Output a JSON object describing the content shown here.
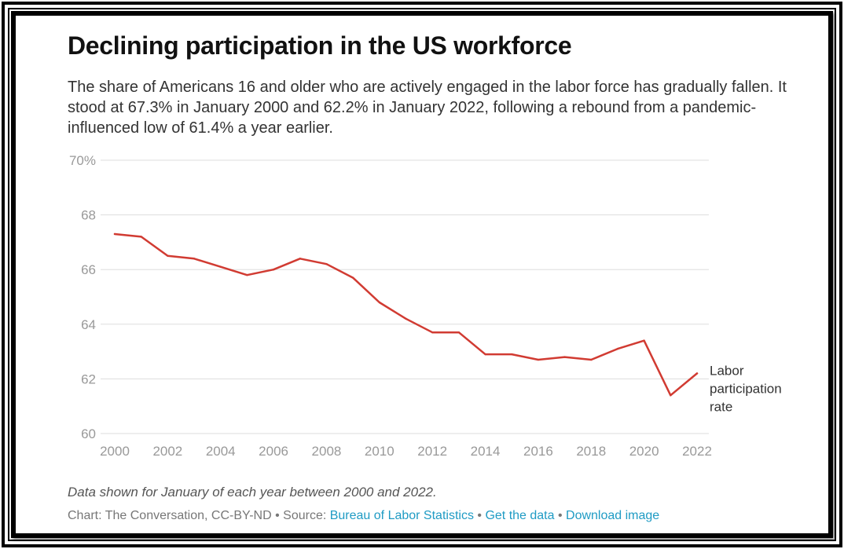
{
  "header": {
    "title": "Declining participation in the US workforce",
    "subtitle": "The share of Americans 16 and older who are actively engaged in the labor force has gradually fallen. It stood at 67.3% in January 2000 and 62.2% in January 2022, following a rebound from a pandemic-influenced low of 61.4% a year earlier."
  },
  "footer": {
    "note": "Data shown for January of each year between 2000 and 2022.",
    "credit_prefix": "Chart: The Conversation, CC-BY-ND • Source: ",
    "source_link": "Bureau of Labor Statistics",
    "separator": " • ",
    "get_data_link": "Get the data",
    "download_link": "Download image"
  },
  "colors": {
    "line": "#d13b32",
    "grid": "#dddddd",
    "tick_text": "#999999",
    "link": "#1f9bc4"
  },
  "chart_data": {
    "type": "line",
    "title": "Declining participation in the US workforce",
    "x": [
      2000,
      2001,
      2002,
      2003,
      2004,
      2005,
      2006,
      2007,
      2008,
      2009,
      2010,
      2011,
      2012,
      2013,
      2014,
      2015,
      2016,
      2017,
      2018,
      2019,
      2020,
      2021,
      2022
    ],
    "series": [
      {
        "name": "Labor participation rate",
        "values": [
          67.3,
          67.2,
          66.5,
          66.4,
          66.1,
          65.8,
          66.0,
          66.4,
          66.2,
          65.7,
          64.8,
          64.2,
          63.7,
          63.7,
          62.9,
          62.9,
          62.7,
          62.8,
          62.7,
          63.1,
          63.4,
          61.4,
          62.2
        ]
      }
    ],
    "series_label_lines": [
      "Labor",
      "participation",
      "rate"
    ],
    "xlim": [
      2000,
      2022
    ],
    "ylim": [
      60,
      70
    ],
    "x_ticks": [
      2000,
      2002,
      2004,
      2006,
      2008,
      2010,
      2012,
      2014,
      2016,
      2018,
      2020,
      2022
    ],
    "y_ticks": [
      60,
      62,
      64,
      66,
      68,
      70
    ],
    "y_tick_labels": [
      "60",
      "62",
      "64",
      "66",
      "68",
      "70%"
    ],
    "grid": true,
    "legend": "end-of-line label"
  }
}
